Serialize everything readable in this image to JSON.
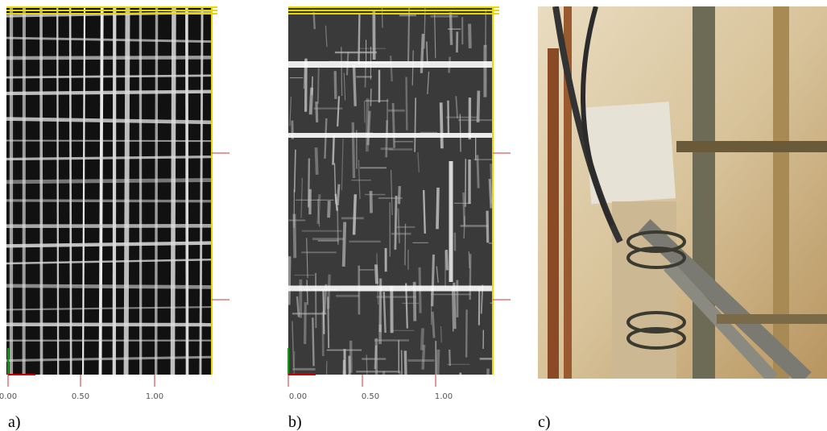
{
  "panels": [
    {
      "label": "a)",
      "ticks": [
        "0.00",
        "0.50",
        "1.00"
      ]
    },
    {
      "label": "b)",
      "ticks": [
        "0.00",
        "0.50",
        "1.00"
      ]
    },
    {
      "label": "c)"
    }
  ]
}
